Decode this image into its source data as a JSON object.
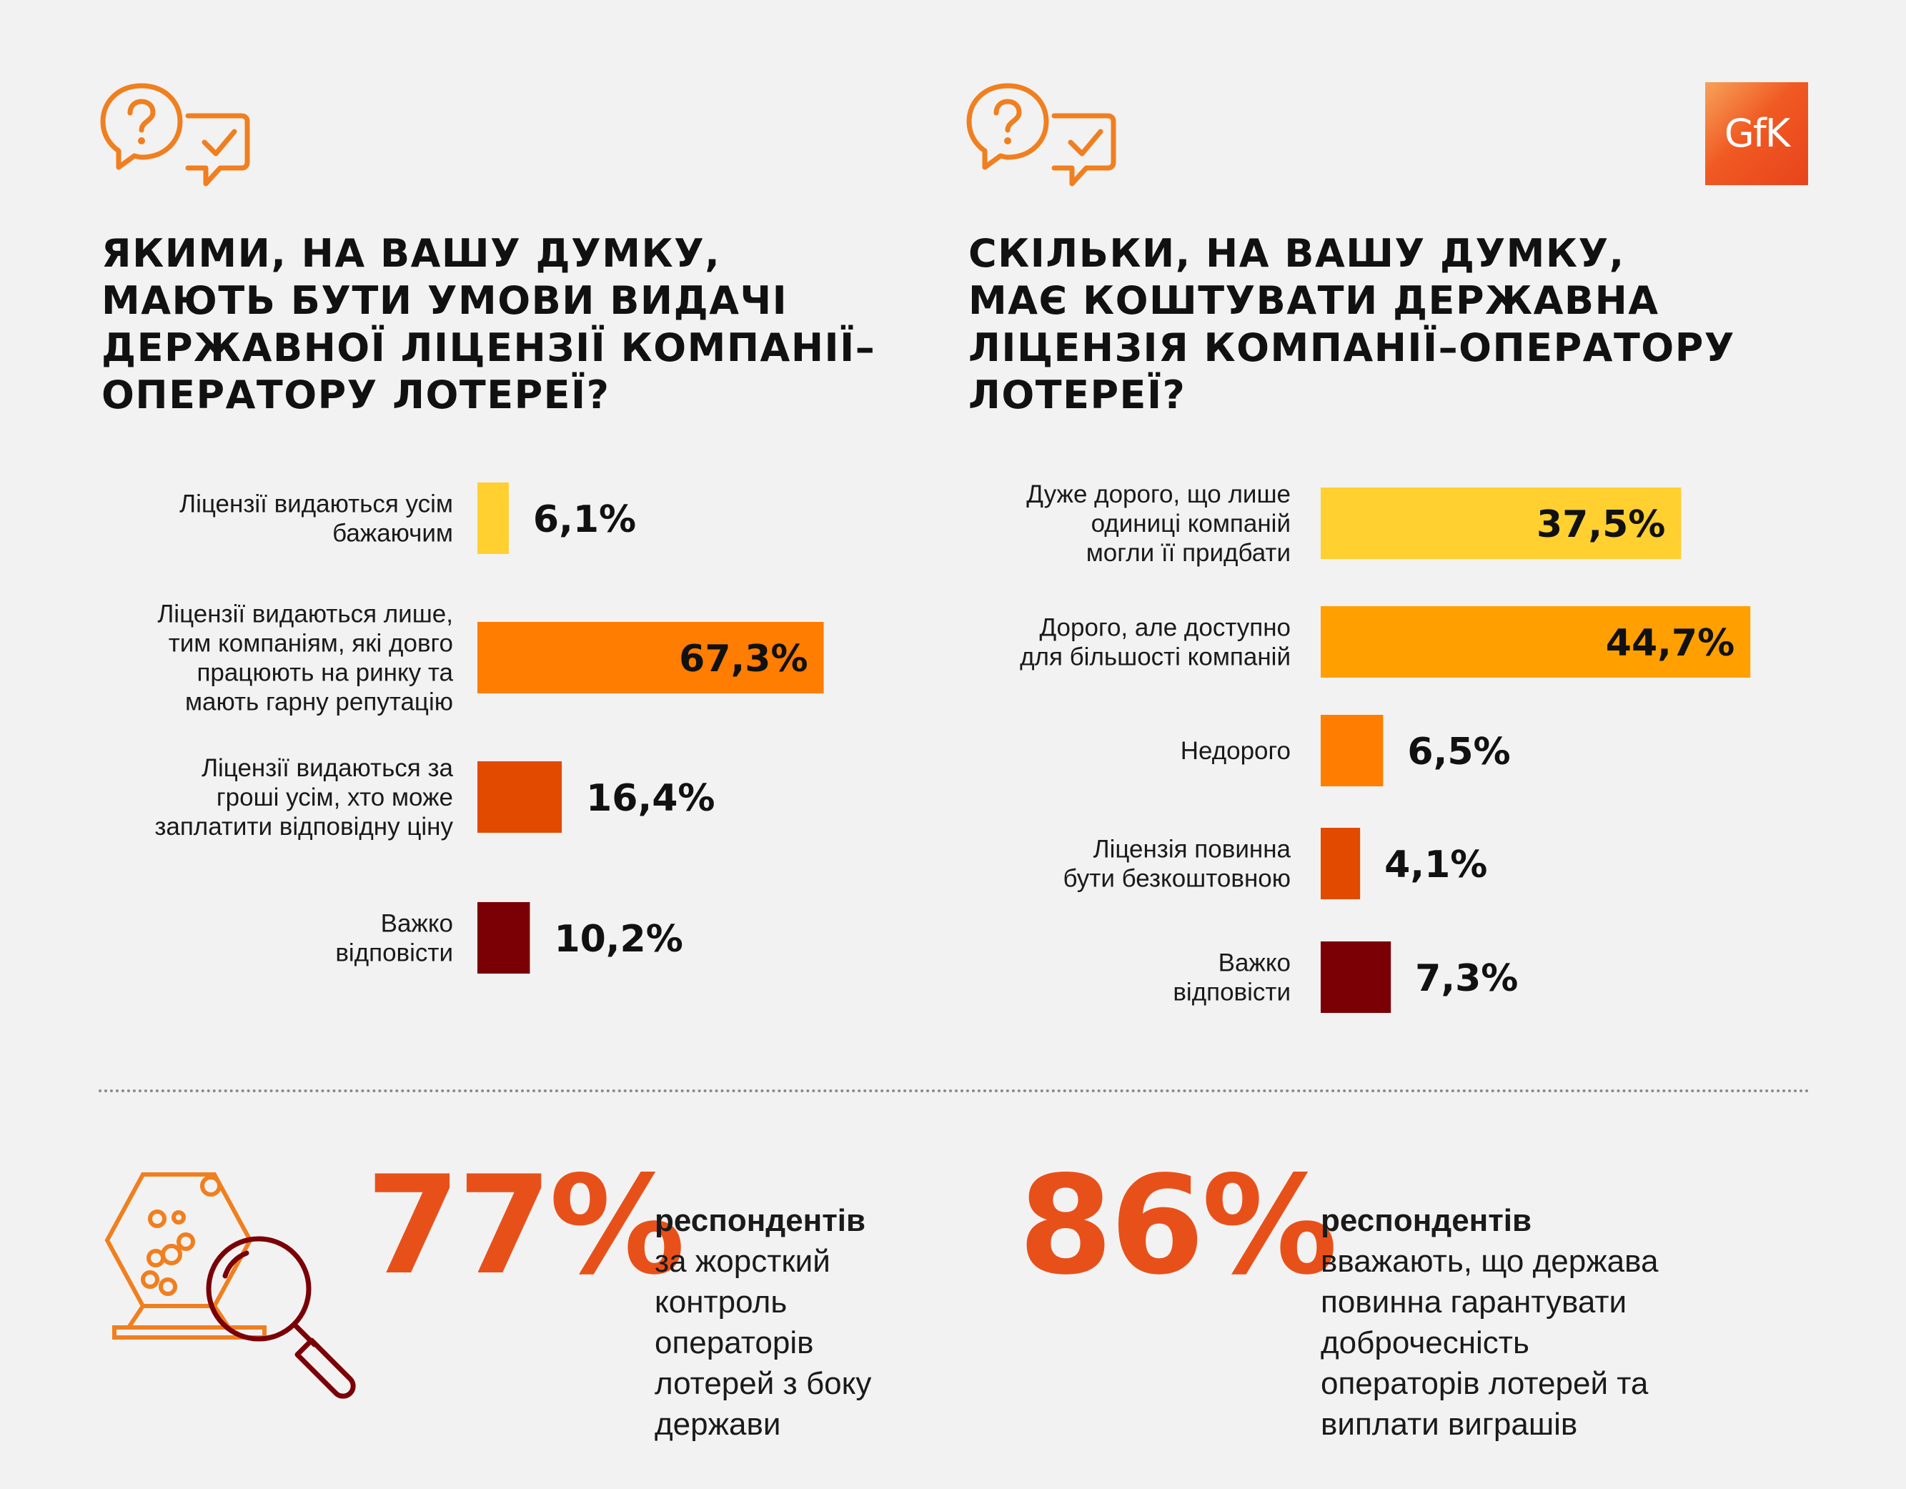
{
  "colors": {
    "accent": "#f07f1f",
    "yellow": "#ffd030",
    "amber": "#ffa000",
    "orange": "#ff7d00",
    "red_orange": "#e24a00",
    "dark_red": "#7a0006",
    "big_number": "#e8501a"
  },
  "logo": {
    "text": "GfK"
  },
  "left": {
    "title": "ЯКИМИ, НА ВАШУ ДУМКУ,\nМАЮТЬ БУТИ УМОВИ ВИДАЧІ\nДЕРЖАВНОЇ ЛІЦЕНЗІЇ КОМПАНІЇ–\nОПЕРАТОРУ ЛОТЕРЕЇ?"
  },
  "right": {
    "title": "СКІЛЬКИ, НА ВАШУ ДУМКУ,\nМАЄ КОШТУВАТИ ДЕРЖАВНА\nЛІЦЕНЗІЯ КОМПАНІЇ–ОПЕРАТОРУ\nЛОТЕРЕЇ?"
  },
  "chart_data": [
    {
      "type": "bar",
      "orientation": "horizontal",
      "title": "ЯКИМИ, НА ВАШУ ДУМКУ, МАЮТЬ БУТИ УМОВИ ВИДАЧІ ДЕРЖАВНОЇ ЛІЦЕНЗІЇ КОМПАНІЇ–ОПЕРАТОРУ ЛОТЕРЕЇ?",
      "unit": "%",
      "grid": false,
      "categories": [
        [
          "Ліцензії видаються усім",
          "бажаючим"
        ],
        [
          "Ліцензії видаються лише,",
          "тим компаніям, які довго",
          "працюють на ринку та",
          "мають гарну репутацію"
        ],
        [
          "Ліцензії видаються за",
          "гроші усім, хто може",
          "заплатити відповідну ціну"
        ],
        [
          "Важко",
          "відповісти"
        ]
      ],
      "values": [
        6.1,
        67.3,
        16.4,
        10.2
      ],
      "value_labels": [
        "6,1%",
        "67,3%",
        "16,4%",
        "10,2%"
      ],
      "bar_colors": [
        "#ffd030",
        "#ff7d00",
        "#e24a00",
        "#7a0006"
      ]
    },
    {
      "type": "bar",
      "orientation": "horizontal",
      "title": "СКІЛЬКИ, НА ВАШУ ДУМКУ, МАЄ КОШТУВАТИ ДЕРЖАВНА ЛІЦЕНЗІЯ КОМПАНІЇ–ОПЕРАТОРУ ЛОТЕРЕЇ?",
      "unit": "%",
      "grid": false,
      "categories": [
        [
          "Дуже дорого, що лише",
          "одиниці компаній",
          "могли її придбати"
        ],
        [
          "Дорого, але доступно",
          "для більшості компаній"
        ],
        [
          "Недорого"
        ],
        [
          "Ліцензія повинна",
          "бути безкоштовною"
        ],
        [
          "Важко",
          "відповісти"
        ]
      ],
      "values": [
        37.5,
        44.7,
        6.5,
        4.1,
        7.3
      ],
      "value_labels": [
        "37,5%",
        "44,7%",
        "6,5%",
        "4,1%",
        "7,3%"
      ],
      "bar_colors": [
        "#ffd030",
        "#ffa000",
        "#ff7d00",
        "#e24a00",
        "#7a0006"
      ]
    }
  ],
  "stats": [
    {
      "value": "77%",
      "bold": "респондентів",
      "text": "за жорсткий\nконтроль\nоператорів\nлотерей з боку\nдержави"
    },
    {
      "value": "86%",
      "bold": "респондентів",
      "text": "вважають, що держава\nповинна гарантувати\nдоброчесність\nоператорів лотерей та\nвиплати виграшів"
    }
  ]
}
